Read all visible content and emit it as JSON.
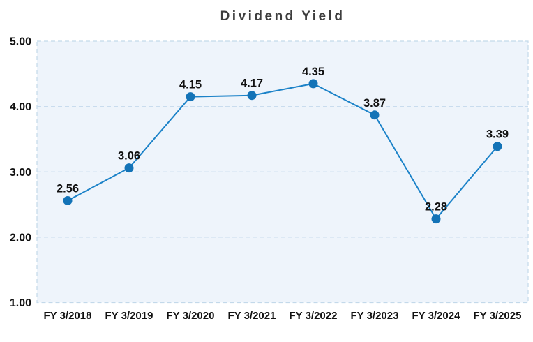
{
  "page": {
    "background": "#ffffff"
  },
  "chart_data": {
    "type": "line",
    "title": "Dividend Yield",
    "categories": [
      "FY 3/2018",
      "FY 3/2019",
      "FY 3/2020",
      "FY 3/2021",
      "FY 3/2022",
      "FY 3/2023",
      "FY 3/2024",
      "FY 3/2025"
    ],
    "values": [
      2.56,
      3.06,
      4.15,
      4.17,
      4.35,
      3.87,
      2.28,
      3.39
    ],
    "point_labels": [
      "2.56",
      "3.06",
      "4.15",
      "4.17",
      "4.35",
      "3.87",
      "2.28",
      "3.39"
    ],
    "xlabel": "",
    "ylabel": "",
    "ylim": [
      1.0,
      5.0
    ],
    "yticks": [
      {
        "value": 5,
        "label": "5.00"
      },
      {
        "value": 4,
        "label": "4.00"
      },
      {
        "value": 3,
        "label": "3.00"
      },
      {
        "value": 2,
        "label": "2.00"
      },
      {
        "value": 1,
        "label": "1.00"
      }
    ],
    "grid": true,
    "legend": "none",
    "colors": {
      "line": "#1b82c8",
      "marker": "#1373b7",
      "plot_background": "#eef4fb",
      "gridline": "#c9dcee",
      "border": "#c3d9ea",
      "label_text": "#111111",
      "title_text": "#3d3d3d"
    }
  }
}
